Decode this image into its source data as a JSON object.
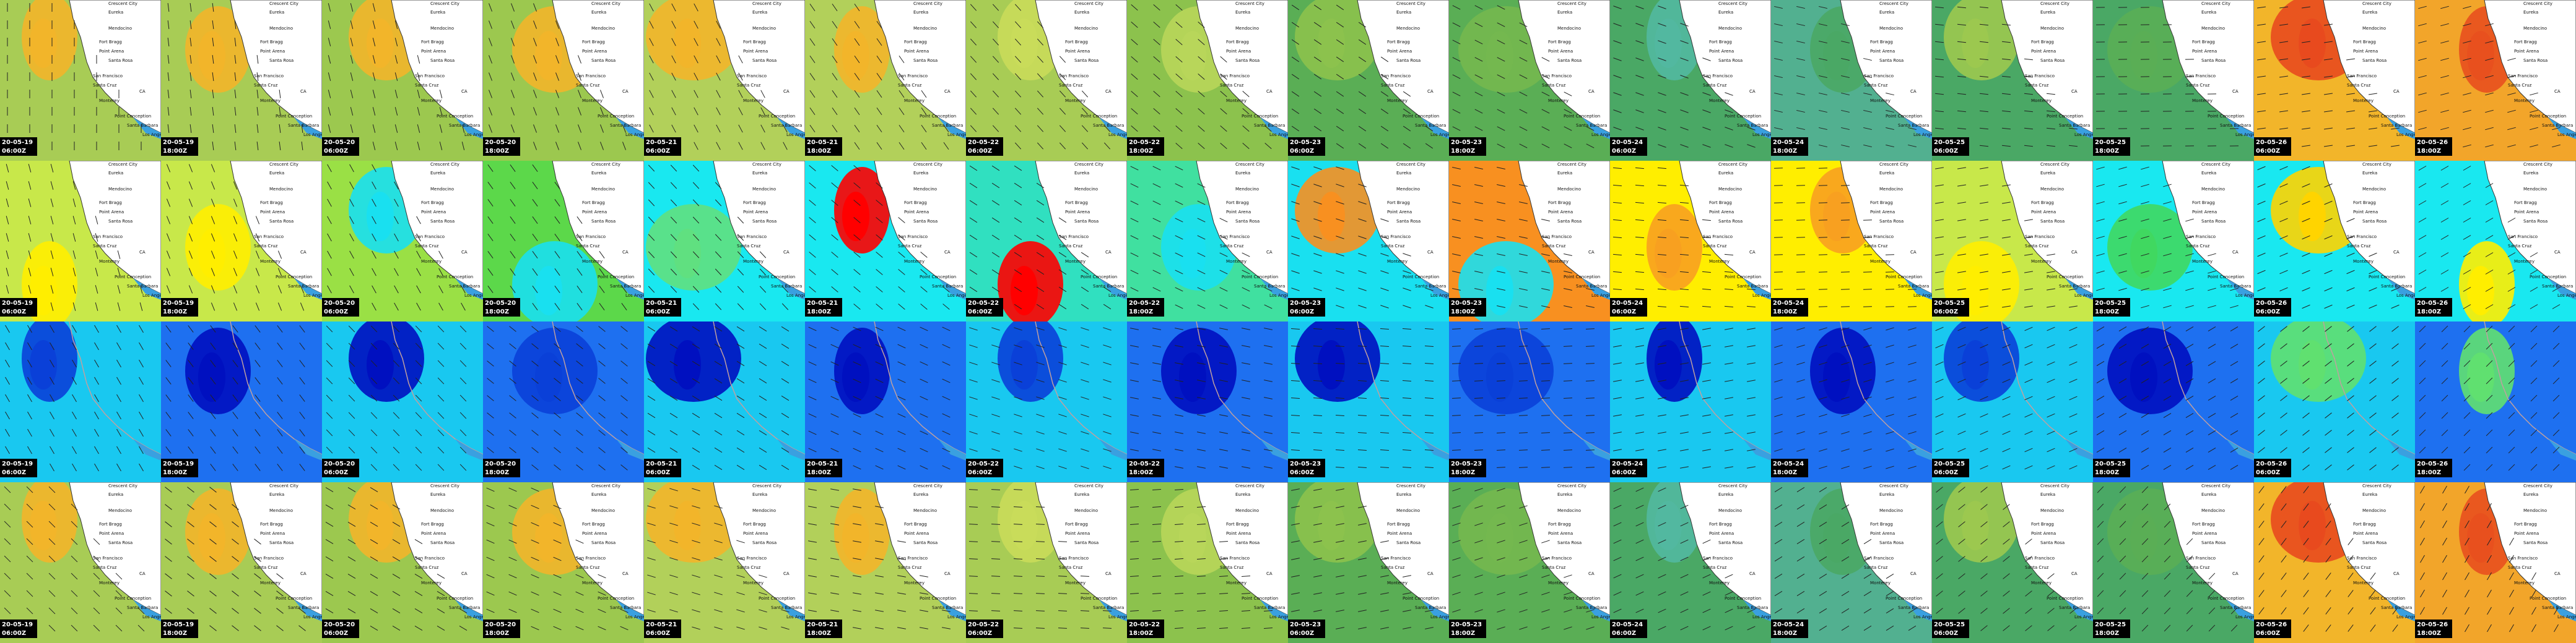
{
  "frames": [
    {
      "date": "20-05-19",
      "time": "06:00Z"
    },
    {
      "date": "20-05-19",
      "time": "18:00Z"
    },
    {
      "date": "20-05-20",
      "time": "06:00Z"
    },
    {
      "date": "20-05-20",
      "time": "18:00Z"
    },
    {
      "date": "20-05-21",
      "time": "06:00Z"
    },
    {
      "date": "20-05-21",
      "time": "18:00Z"
    },
    {
      "date": "20-05-22",
      "time": "06:00Z"
    },
    {
      "date": "20-05-22",
      "time": "18:00Z"
    },
    {
      "date": "20-05-23",
      "time": "06:00Z"
    },
    {
      "date": "20-05-23",
      "time": "18:00Z"
    },
    {
      "date": "20-05-24",
      "time": "06:00Z"
    },
    {
      "date": "20-05-24",
      "time": "18:00Z"
    },
    {
      "date": "20-05-25",
      "time": "06:00Z"
    },
    {
      "date": "20-05-25",
      "time": "18:00Z"
    },
    {
      "date": "20-05-26",
      "time": "06:00Z"
    },
    {
      "date": "20-05-26",
      "time": "18:00Z"
    }
  ],
  "places": [
    "Crescent City",
    "Eureka",
    "Mendocino",
    "Fort Bragg",
    "Point Arena",
    "Santa Rosa",
    "San Francisco",
    "Santa Cruz",
    "Monterey",
    "CA",
    "Point Conception",
    "Santa Barbara",
    "Los Angeles"
  ]
}
